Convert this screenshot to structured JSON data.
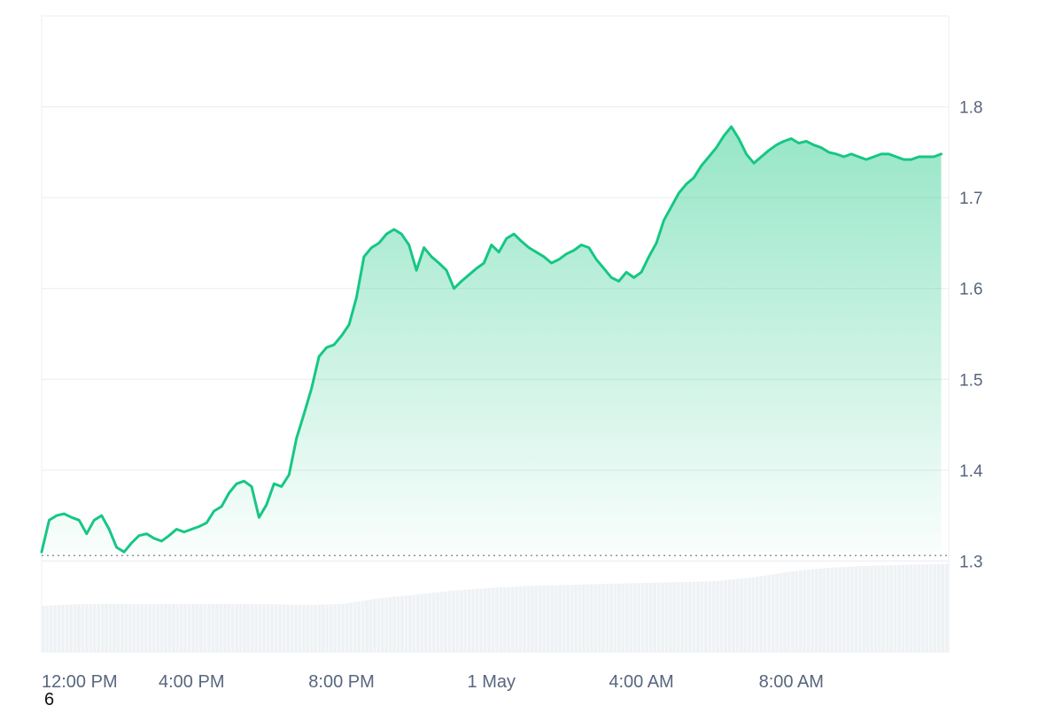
{
  "chart_data": {
    "type": "area",
    "title": "",
    "xlabel": "",
    "ylabel": "",
    "x_axis": {
      "ticks": [
        "12:00 PM",
        "4:00 PM",
        "8:00 PM",
        "1 May",
        "4:00 AM",
        "8:00 AM"
      ],
      "tick_hours": [
        0,
        4,
        8,
        12,
        16,
        20
      ],
      "range_hours": [
        0,
        24.2
      ]
    },
    "y_axis": {
      "ticks": [
        1.3,
        1.4,
        1.5,
        1.6,
        1.7,
        1.8
      ],
      "tick_labels": [
        "1.3",
        "1.4",
        "1.5",
        "1.6",
        "1.7",
        "1.8"
      ],
      "range": [
        1.2,
        1.9
      ],
      "position": "right",
      "grid": true
    },
    "baseline": 1.306,
    "colors": {
      "line": "#16c784",
      "fill": "#16c784",
      "grid": "#e9ecef",
      "axis_text": "#58667e",
      "volume": "#eff2f5",
      "baseline": "#8a94a6"
    },
    "series": [
      {
        "x": [
          0,
          0.2,
          0.4,
          0.6,
          0.8,
          1.0,
          1.2,
          1.4,
          1.6,
          1.8,
          2.0,
          2.2,
          2.4,
          2.6,
          2.8,
          3.0,
          3.2,
          3.4,
          3.6,
          3.8,
          4.0,
          4.2,
          4.4,
          4.6,
          4.8,
          5.0,
          5.2,
          5.4,
          5.6,
          5.8,
          6.0,
          6.2,
          6.4,
          6.6,
          6.8,
          7.0,
          7.2,
          7.4,
          7.6,
          7.8,
          8.0,
          8.2,
          8.4,
          8.6,
          8.8,
          9.0,
          9.2,
          9.4,
          9.6,
          9.8,
          10.0,
          10.2,
          10.4,
          10.6,
          10.8,
          11.0,
          11.2,
          11.4,
          11.6,
          11.8,
          12.0,
          12.2,
          12.4,
          12.6,
          12.8,
          13.0,
          13.2,
          13.4,
          13.6,
          13.8,
          14.0,
          14.2,
          14.4,
          14.6,
          14.8,
          15.0,
          15.2,
          15.4,
          15.6,
          15.8,
          16.0,
          16.2,
          16.4,
          16.6,
          16.8,
          17.0,
          17.2,
          17.4,
          17.6,
          17.8,
          18.0,
          18.2,
          18.4,
          18.6,
          18.8,
          19.0,
          19.2,
          19.4,
          19.6,
          19.8,
          20.0,
          20.2,
          20.4,
          20.6,
          20.8,
          21.0,
          21.2,
          21.4,
          21.6,
          21.8,
          22.0,
          22.2,
          22.4,
          22.6,
          22.8,
          23.0,
          23.2,
          23.4,
          23.6,
          23.8,
          24.0
        ],
        "values": [
          1.31,
          1.345,
          1.35,
          1.352,
          1.348,
          1.345,
          1.33,
          1.345,
          1.35,
          1.335,
          1.315,
          1.31,
          1.32,
          1.328,
          1.33,
          1.325,
          1.322,
          1.328,
          1.335,
          1.332,
          1.335,
          1.338,
          1.342,
          1.355,
          1.36,
          1.375,
          1.385,
          1.388,
          1.382,
          1.348,
          1.362,
          1.385,
          1.382,
          1.395,
          1.435,
          1.462,
          1.49,
          1.525,
          1.535,
          1.538,
          1.548,
          1.56,
          1.59,
          1.635,
          1.645,
          1.65,
          1.66,
          1.665,
          1.66,
          1.648,
          1.62,
          1.645,
          1.635,
          1.628,
          1.62,
          1.6,
          1.608,
          1.615,
          1.622,
          1.628,
          1.648,
          1.64,
          1.655,
          1.66,
          1.652,
          1.645,
          1.64,
          1.635,
          1.628,
          1.632,
          1.638,
          1.642,
          1.648,
          1.645,
          1.632,
          1.622,
          1.612,
          1.608,
          1.618,
          1.612,
          1.618,
          1.635,
          1.65,
          1.675,
          1.69,
          1.705,
          1.715,
          1.722,
          1.735,
          1.745,
          1.755,
          1.768,
          1.778,
          1.765,
          1.748,
          1.738,
          1.745,
          1.752,
          1.758,
          1.762,
          1.765,
          1.76,
          1.762,
          1.758,
          1.755,
          1.75,
          1.748,
          1.745,
          1.748,
          1.745,
          1.742,
          1.745,
          1.748,
          1.748,
          1.745,
          1.742,
          1.742,
          1.745,
          1.745,
          1.745,
          1.748
        ]
      }
    ],
    "volume": {
      "x": [
        0,
        1,
        2,
        3,
        4,
        5,
        6,
        7,
        8,
        9,
        10,
        11,
        12,
        13,
        14,
        15,
        16,
        17,
        18,
        19,
        20,
        21,
        22,
        23,
        24
      ],
      "values": [
        0.48,
        0.5,
        0.5,
        0.5,
        0.5,
        0.5,
        0.5,
        0.49,
        0.5,
        0.56,
        0.6,
        0.64,
        0.67,
        0.69,
        0.7,
        0.71,
        0.72,
        0.73,
        0.74,
        0.78,
        0.84,
        0.88,
        0.9,
        0.91,
        0.92
      ]
    }
  },
  "corner_label": "6"
}
